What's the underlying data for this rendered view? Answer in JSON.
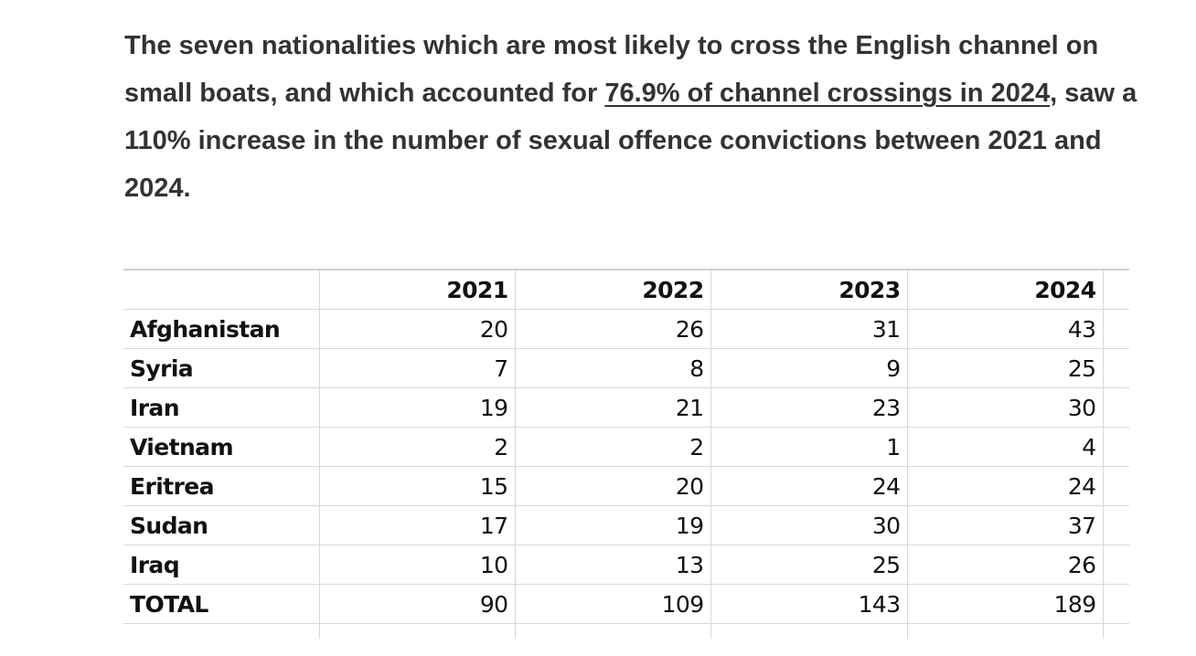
{
  "article": {
    "text_before_link": "The seven nationalities which are most likely to cross the English channel on small boats, and which accounted for ",
    "link_text": "76.9% of channel crossings in 2024",
    "text_after_link": ", saw a 110% increase in the number of sexual offence convictions between 2021 and 2024."
  },
  "table": {
    "headers": [
      "",
      "2021",
      "2022",
      "2023",
      "2024"
    ],
    "rows": [
      {
        "label": "Afghanistan",
        "values": [
          "20",
          "26",
          "31",
          "43"
        ]
      },
      {
        "label": "Syria",
        "values": [
          "7",
          "8",
          "9",
          "25"
        ]
      },
      {
        "label": "Iran",
        "values": [
          "19",
          "21",
          "23",
          "30"
        ]
      },
      {
        "label": "Vietnam",
        "values": [
          "2",
          "2",
          "1",
          "4"
        ]
      },
      {
        "label": "Eritrea",
        "values": [
          "15",
          "20",
          "24",
          "24"
        ]
      },
      {
        "label": "Sudan",
        "values": [
          "17",
          "19",
          "30",
          "37"
        ]
      },
      {
        "label": "Iraq",
        "values": [
          "10",
          "13",
          "25",
          "26"
        ]
      },
      {
        "label": "TOTAL",
        "values": [
          "90",
          "109",
          "143",
          "189"
        ]
      }
    ]
  }
}
